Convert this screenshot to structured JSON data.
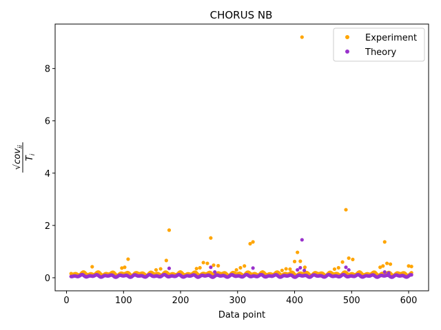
{
  "chart_data": {
    "type": "scatter",
    "title": "CHORUS NB",
    "xlabel": "Data point",
    "ylabel_math": {
      "root": "√",
      "numerator": "cov",
      "numerator_sub": "ii",
      "denominator": "T",
      "denominator_sub": "i"
    },
    "xlim": [
      -20,
      635
    ],
    "ylim": [
      -0.5,
      9.7
    ],
    "xticks": [
      0,
      100,
      200,
      300,
      400,
      500,
      600
    ],
    "yticks": [
      0,
      2,
      4,
      6,
      8
    ],
    "legend_position": "top-right",
    "series": [
      {
        "name": "Experiment",
        "color": "#ffa500",
        "base": {
          "x_start": 8,
          "x_end": 606,
          "level": 0.15,
          "amplitude": 0.07
        },
        "points": [
          {
            "x": 45,
            "y": 0.42
          },
          {
            "x": 97,
            "y": 0.37
          },
          {
            "x": 102,
            "y": 0.4
          },
          {
            "x": 108,
            "y": 0.71
          },
          {
            "x": 157,
            "y": 0.3
          },
          {
            "x": 165,
            "y": 0.34
          },
          {
            "x": 175,
            "y": 0.66
          },
          {
            "x": 180,
            "y": 1.82
          },
          {
            "x": 228,
            "y": 0.35
          },
          {
            "x": 234,
            "y": 0.38
          },
          {
            "x": 240,
            "y": 0.58
          },
          {
            "x": 247,
            "y": 0.55
          },
          {
            "x": 253,
            "y": 1.52
          },
          {
            "x": 258,
            "y": 0.48
          },
          {
            "x": 266,
            "y": 0.46
          },
          {
            "x": 298,
            "y": 0.3
          },
          {
            "x": 305,
            "y": 0.38
          },
          {
            "x": 312,
            "y": 0.45
          },
          {
            "x": 322,
            "y": 1.3
          },
          {
            "x": 327,
            "y": 1.37
          },
          {
            "x": 378,
            "y": 0.28
          },
          {
            "x": 385,
            "y": 0.34
          },
          {
            "x": 392,
            "y": 0.33
          },
          {
            "x": 400,
            "y": 0.62
          },
          {
            "x": 405,
            "y": 0.97
          },
          {
            "x": 410,
            "y": 0.63
          },
          {
            "x": 413,
            "y": 9.2
          },
          {
            "x": 418,
            "y": 0.4
          },
          {
            "x": 470,
            "y": 0.33
          },
          {
            "x": 477,
            "y": 0.38
          },
          {
            "x": 484,
            "y": 0.6
          },
          {
            "x": 490,
            "y": 2.6
          },
          {
            "x": 495,
            "y": 0.75
          },
          {
            "x": 502,
            "y": 0.7
          },
          {
            "x": 550,
            "y": 0.4
          },
          {
            "x": 555,
            "y": 0.45
          },
          {
            "x": 558,
            "y": 1.37
          },
          {
            "x": 562,
            "y": 0.55
          },
          {
            "x": 568,
            "y": 0.52
          },
          {
            "x": 600,
            "y": 0.45
          },
          {
            "x": 605,
            "y": 0.43
          }
        ]
      },
      {
        "name": "Theory",
        "color": "#9932cc",
        "base": {
          "x_start": 8,
          "x_end": 606,
          "level": 0.07,
          "amplitude": 0.05
        },
        "points": [
          {
            "x": 180,
            "y": 0.36
          },
          {
            "x": 253,
            "y": 0.4
          },
          {
            "x": 260,
            "y": 0.22
          },
          {
            "x": 327,
            "y": 0.37
          },
          {
            "x": 405,
            "y": 0.3
          },
          {
            "x": 410,
            "y": 0.38
          },
          {
            "x": 413,
            "y": 1.45
          },
          {
            "x": 417,
            "y": 0.28
          },
          {
            "x": 490,
            "y": 0.4
          },
          {
            "x": 495,
            "y": 0.3
          },
          {
            "x": 558,
            "y": 0.22
          },
          {
            "x": 565,
            "y": 0.18
          }
        ]
      }
    ]
  }
}
